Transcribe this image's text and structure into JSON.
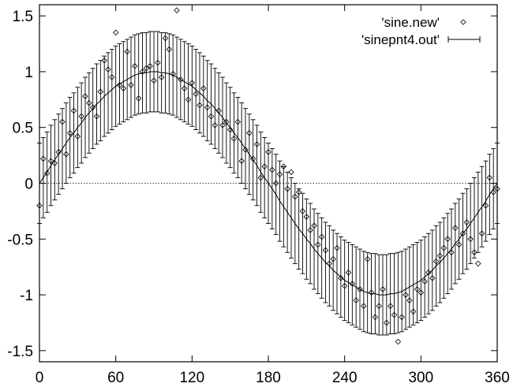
{
  "chart_data": {
    "type": "scatter",
    "xlim": [
      0,
      360
    ],
    "ylim": [
      -1.6,
      1.6
    ],
    "x_ticks": [
      0,
      60,
      120,
      180,
      240,
      300,
      360
    ],
    "y_ticks": [
      1.5,
      1,
      0.5,
      0,
      -0.5,
      -1,
      -1.5
    ],
    "x_tick_labels": [
      "0",
      "60",
      "120",
      "180",
      "240",
      "300",
      "360"
    ],
    "y_tick_labels": [
      "1.5",
      "1",
      "0.5",
      "0",
      "-0.5",
      "-1",
      "-1.5"
    ],
    "zero_line": true,
    "grid": false,
    "legend_position": "top-right",
    "series": [
      {
        "name": "'sine.new'",
        "style": "points",
        "marker": "diamond",
        "x": [
          0,
          3,
          6,
          9,
          12,
          15,
          18,
          21,
          24,
          27,
          30,
          33,
          36,
          39,
          42,
          45,
          48,
          51,
          54,
          57,
          60,
          63,
          66,
          69,
          72,
          75,
          78,
          81,
          84,
          87,
          90,
          93,
          96,
          99,
          102,
          105,
          108,
          111,
          114,
          117,
          120,
          123,
          126,
          129,
          132,
          135,
          138,
          141,
          144,
          147,
          150,
          153,
          156,
          159,
          162,
          165,
          168,
          171,
          174,
          177,
          180,
          183,
          186,
          189,
          192,
          195,
          198,
          201,
          204,
          207,
          210,
          213,
          216,
          219,
          222,
          225,
          228,
          231,
          234,
          237,
          240,
          243,
          246,
          249,
          252,
          255,
          258,
          261,
          264,
          267,
          270,
          273,
          276,
          279,
          282,
          285,
          288,
          291,
          294,
          297,
          300,
          303,
          306,
          309,
          312,
          315,
          318,
          321,
          324,
          327,
          330,
          333,
          336,
          339,
          342,
          345,
          348,
          351,
          354,
          357,
          360
        ],
        "y": [
          -0.2,
          0.22,
          0.09,
          0.2,
          0.18,
          0.28,
          0.55,
          0.26,
          0.45,
          0.65,
          0.42,
          0.6,
          0.78,
          0.72,
          0.68,
          0.6,
          0.82,
          1.1,
          1.02,
          0.95,
          1.35,
          0.88,
          0.85,
          1.18,
          0.88,
          1.05,
          0.76,
          1.0,
          1.03,
          1.05,
          0.92,
          1.08,
          0.95,
          1.3,
          1.2,
          0.98,
          1.55,
          0.93,
          0.85,
          0.75,
          0.9,
          0.8,
          0.7,
          0.85,
          0.68,
          0.6,
          0.52,
          0.65,
          0.52,
          0.55,
          0.48,
          0.4,
          0.55,
          0.2,
          0.3,
          0.45,
          0.22,
          0.35,
          0.05,
          0.15,
          0.28,
          0.12,
          0.0,
          0.08,
          0.15,
          -0.05,
          0.1,
          -0.12,
          -0.08,
          -0.25,
          -0.3,
          -0.42,
          -0.38,
          -0.55,
          -0.48,
          -0.6,
          -0.72,
          -0.68,
          -0.58,
          -0.85,
          -0.92,
          -0.8,
          -0.9,
          -1.05,
          -0.95,
          -1.1,
          -0.68,
          -0.98,
          -1.2,
          -1.1,
          -0.95,
          -1.25,
          -1.1,
          -1.18,
          -1.42,
          -1.2,
          -1.0,
          -1.05,
          -1.15,
          -0.95,
          -0.98,
          -0.88,
          -0.8,
          -0.85,
          -0.7,
          -0.65,
          -0.58,
          -0.5,
          -0.62,
          -0.4,
          -0.55,
          -0.45,
          -0.35,
          -0.5,
          -0.62,
          -0.72,
          -0.45,
          -0.2,
          0.05,
          -0.08,
          -0.05
        ]
      },
      {
        "name": "'sinepnt4.out'",
        "style": "errorbars",
        "x": [
          0,
          3,
          6,
          9,
          12,
          15,
          18,
          21,
          24,
          27,
          30,
          33,
          36,
          39,
          42,
          45,
          48,
          51,
          54,
          57,
          60,
          63,
          66,
          69,
          72,
          75,
          78,
          81,
          84,
          87,
          90,
          93,
          96,
          99,
          102,
          105,
          108,
          111,
          114,
          117,
          120,
          123,
          126,
          129,
          132,
          135,
          138,
          141,
          144,
          147,
          150,
          153,
          156,
          159,
          162,
          165,
          168,
          171,
          174,
          177,
          180,
          183,
          186,
          189,
          192,
          195,
          198,
          201,
          204,
          207,
          210,
          213,
          216,
          219,
          222,
          225,
          228,
          231,
          234,
          237,
          240,
          243,
          246,
          249,
          252,
          255,
          258,
          261,
          264,
          267,
          270,
          273,
          276,
          279,
          282,
          285,
          288,
          291,
          294,
          297,
          300,
          303,
          306,
          309,
          312,
          315,
          318,
          321,
          324,
          327,
          330,
          333,
          336,
          339,
          342,
          345,
          348,
          351,
          354,
          357,
          360
        ],
        "y": [
          0.0,
          0.05,
          0.1,
          0.16,
          0.21,
          0.26,
          0.31,
          0.36,
          0.41,
          0.45,
          0.5,
          0.54,
          0.59,
          0.63,
          0.67,
          0.71,
          0.74,
          0.78,
          0.81,
          0.84,
          0.87,
          0.89,
          0.91,
          0.93,
          0.95,
          0.97,
          0.98,
          0.99,
          0.99,
          1.0,
          1.0,
          1.0,
          0.99,
          0.99,
          0.98,
          0.97,
          0.95,
          0.93,
          0.91,
          0.89,
          0.87,
          0.84,
          0.81,
          0.78,
          0.74,
          0.71,
          0.67,
          0.63,
          0.59,
          0.54,
          0.5,
          0.45,
          0.41,
          0.36,
          0.31,
          0.26,
          0.21,
          0.16,
          0.1,
          0.05,
          0.0,
          -0.05,
          -0.1,
          -0.16,
          -0.21,
          -0.26,
          -0.31,
          -0.36,
          -0.41,
          -0.45,
          -0.5,
          -0.54,
          -0.59,
          -0.63,
          -0.67,
          -0.71,
          -0.74,
          -0.78,
          -0.81,
          -0.84,
          -0.87,
          -0.89,
          -0.91,
          -0.93,
          -0.95,
          -0.97,
          -0.98,
          -0.99,
          -0.99,
          -1.0,
          -1.0,
          -1.0,
          -0.99,
          -0.99,
          -0.98,
          -0.97,
          -0.95,
          -0.93,
          -0.91,
          -0.89,
          -0.87,
          -0.84,
          -0.81,
          -0.78,
          -0.74,
          -0.71,
          -0.67,
          -0.63,
          -0.59,
          -0.54,
          -0.5,
          -0.45,
          -0.41,
          -0.36,
          -0.31,
          -0.26,
          -0.21,
          -0.16,
          -0.1,
          -0.05,
          0.0
        ],
        "yerr": 0.36
      }
    ]
  }
}
